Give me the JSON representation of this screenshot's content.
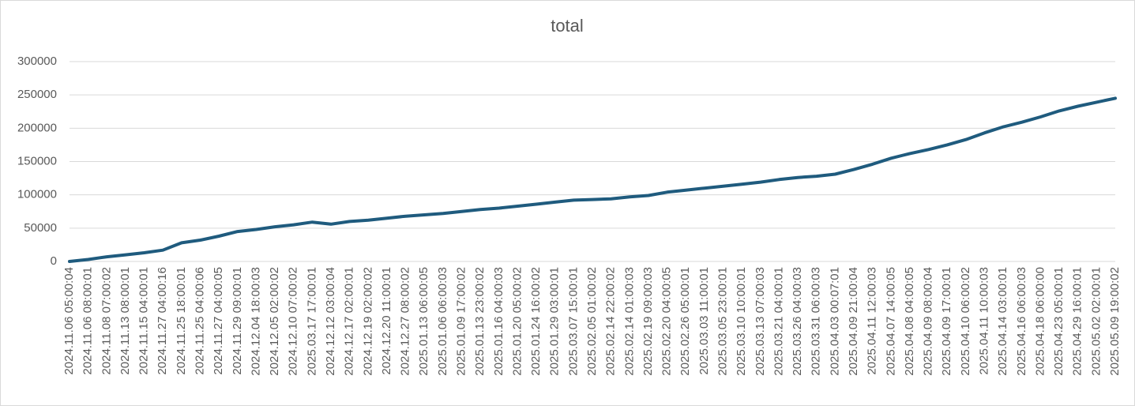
{
  "chart_data": {
    "type": "line",
    "title": "total",
    "categories": [
      "2024.11.06 05:00:04",
      "2024.11.06 08:00:01",
      "2024.11.08 07:00:02",
      "2024.11.13 08:00:01",
      "2024.11.15 04:00:01",
      "2024.11.27 04:00:16",
      "2024.11.25 18:00:01",
      "2024.11.25 04:00:06",
      "2024.11.27 04:00:05",
      "2024.11.29 09:00:01",
      "2024.12.04 18:00:03",
      "2024.12.05 02:00:02",
      "2024.12.10 07:00:02",
      "2025.03.17 17:00:01",
      "2024.12.12 03:00:04",
      "2024.12.17 02:00:01",
      "2024.12.19 02:00:02",
      "2024.12.20 11:00:01",
      "2024.12.27 08:00:02",
      "2025.01.13 06:00:05",
      "2025.01.06 06:00:03",
      "2025.01.09 17:00:02",
      "2025.01.13 23:00:02",
      "2025.01.16 04:00:03",
      "2025.01.20 05:00:02",
      "2025.01.24 16:00:02",
      "2025.01.29 03:00:01",
      "2025.03.07 15:00:01",
      "2025.02.05 01:00:02",
      "2025.02.14 22:00:02",
      "2025.02.14 01:00:03",
      "2025.02.19 09:00:03",
      "2025.02.20 04:00:05",
      "2025.02.26 05:00:01",
      "2025.03.03 11:00:01",
      "2025.03.05 23:00:01",
      "2025.03.10 10:00:01",
      "2025.03.13 07:00:03",
      "2025.03.21 04:00:01",
      "2025.03.26 04:00:03",
      "2025.03.31 06:00:03",
      "2025.04.03 00:07:01",
      "2025.04.09 21:00:04",
      "2025.04.11 12:00:03",
      "2025.04.07 14:00:05",
      "2025.04.08 04:00:05",
      "2025.04.09 08:00:04",
      "2025.04.09 17:00:01",
      "2025.04.10 06:00:02",
      "2025.04.11 10:00:03",
      "2025.04.14 03:00:01",
      "2025.04.16 06:00:03",
      "2025.04.18 06:00:00",
      "2025.04.23 05:00:01",
      "2025.04.29 16:00:01",
      "2025.05.02 02:00:01",
      "2025.05.09 19:00:02"
    ],
    "values": [
      0,
      3000,
      7000,
      10000,
      13000,
      17000,
      28000,
      32000,
      38000,
      45000,
      48000,
      52000,
      55000,
      59000,
      56000,
      60000,
      62000,
      65000,
      68000,
      70000,
      72000,
      75000,
      78000,
      80000,
      83000,
      86000,
      89000,
      92000,
      93000,
      94000,
      97000,
      99000,
      104000,
      107000,
      110000,
      113000,
      116000,
      119000,
      123000,
      126000,
      128000,
      131000,
      138000,
      146000,
      155000,
      162000,
      168000,
      175000,
      183000,
      193000,
      202000,
      209000,
      217000,
      226000,
      233000,
      239000,
      245000
    ],
    "color": "#1f5b7e",
    "ylim": [
      0,
      300000
    ],
    "yticks": [
      0,
      50000,
      100000,
      150000,
      200000,
      250000,
      300000
    ],
    "grid": true
  }
}
